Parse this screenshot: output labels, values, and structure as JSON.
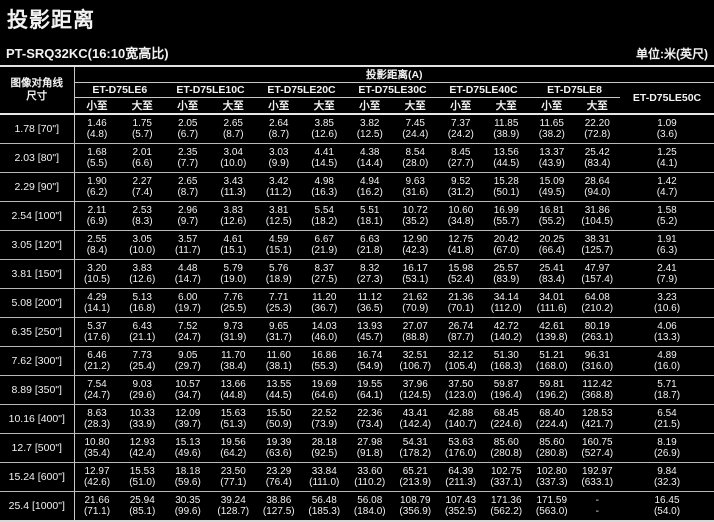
{
  "colors": {
    "background": "#000000",
    "text": "#ffffff",
    "rule": "#c8c8c8"
  },
  "header": {
    "title": "投影距离",
    "model": "PT-SRQ32KC(16:10宽高比)",
    "unit": "单位:米(英尺)"
  },
  "table": {
    "projection_header": "投影距离(A)",
    "row_header_line1": "图像对角线",
    "row_header_line2": "尺寸",
    "min_label": "小至",
    "max_label": "大至",
    "lenses": [
      "ET-D75LE6",
      "ET-D75LE10C",
      "ET-D75LE20C",
      "ET-D75LE30C",
      "ET-D75LE40C",
      "ET-D75LE8",
      "ET-D75LE50C"
    ],
    "rows": [
      {
        "size": "1.78 [70\"]",
        "cells": [
          [
            "1.46",
            "(4.8)"
          ],
          [
            "1.75",
            "(5.7)"
          ],
          [
            "2.05",
            "(6.7)"
          ],
          [
            "2.65",
            "(8.7)"
          ],
          [
            "2.64",
            "(8.7)"
          ],
          [
            "3.85",
            "(12.6)"
          ],
          [
            "3.82",
            "(12.5)"
          ],
          [
            "7.45",
            "(24.4)"
          ],
          [
            "7.37",
            "(24.2)"
          ],
          [
            "11.85",
            "(38.9)"
          ],
          [
            "11.65",
            "(38.2)"
          ],
          [
            "22.20",
            "(72.8)"
          ],
          [
            "1.09",
            "(3.6)"
          ]
        ]
      },
      {
        "size": "2.03 [80\"]",
        "cells": [
          [
            "1.68",
            "(5.5)"
          ],
          [
            "2.01",
            "(6.6)"
          ],
          [
            "2.35",
            "(7.7)"
          ],
          [
            "3.04",
            "(10.0)"
          ],
          [
            "3.03",
            "(9.9)"
          ],
          [
            "4.41",
            "(14.5)"
          ],
          [
            "4.38",
            "(14.4)"
          ],
          [
            "8.54",
            "(28.0)"
          ],
          [
            "8.45",
            "(27.7)"
          ],
          [
            "13.56",
            "(44.5)"
          ],
          [
            "13.37",
            "(43.9)"
          ],
          [
            "25.42",
            "(83.4)"
          ],
          [
            "1.25",
            "(4.1)"
          ]
        ]
      },
      {
        "size": "2.29 [90\"]",
        "cells": [
          [
            "1.90",
            "(6.2)"
          ],
          [
            "2.27",
            "(7.4)"
          ],
          [
            "2.65",
            "(8.7)"
          ],
          [
            "3.43",
            "(11.3)"
          ],
          [
            "3.42",
            "(11.2)"
          ],
          [
            "4.98",
            "(16.3)"
          ],
          [
            "4.94",
            "(16.2)"
          ],
          [
            "9.63",
            "(31.6)"
          ],
          [
            "9.52",
            "(31.2)"
          ],
          [
            "15.28",
            "(50.1)"
          ],
          [
            "15.09",
            "(49.5)"
          ],
          [
            "28.64",
            "(94.0)"
          ],
          [
            "1.42",
            "(4.7)"
          ]
        ]
      },
      {
        "size": "2.54 [100\"]",
        "cells": [
          [
            "2.11",
            "(6.9)"
          ],
          [
            "2.53",
            "(8.3)"
          ],
          [
            "2.96",
            "(9.7)"
          ],
          [
            "3.83",
            "(12.6)"
          ],
          [
            "3.81",
            "(12.5)"
          ],
          [
            "5.54",
            "(18.2)"
          ],
          [
            "5.51",
            "(18.1)"
          ],
          [
            "10.72",
            "(35.2)"
          ],
          [
            "10.60",
            "(34.8)"
          ],
          [
            "16.99",
            "(55.7)"
          ],
          [
            "16.81",
            "(55.2)"
          ],
          [
            "31.86",
            "(104.5)"
          ],
          [
            "1.58",
            "(5.2)"
          ]
        ]
      },
      {
        "size": "3.05 [120\"]",
        "cells": [
          [
            "2.55",
            "(8.4)"
          ],
          [
            "3.05",
            "(10.0)"
          ],
          [
            "3.57",
            "(11.7)"
          ],
          [
            "4.61",
            "(15.1)"
          ],
          [
            "4.59",
            "(15.1)"
          ],
          [
            "6.67",
            "(21.9)"
          ],
          [
            "6.63",
            "(21.8)"
          ],
          [
            "12.90",
            "(42.3)"
          ],
          [
            "12.75",
            "(41.8)"
          ],
          [
            "20.42",
            "(67.0)"
          ],
          [
            "20.25",
            "(66.4)"
          ],
          [
            "38.31",
            "(125.7)"
          ],
          [
            "1.91",
            "(6.3)"
          ]
        ]
      },
      {
        "size": "3.81 [150\"]",
        "cells": [
          [
            "3.20",
            "(10.5)"
          ],
          [
            "3.83",
            "(12.6)"
          ],
          [
            "4.48",
            "(14.7)"
          ],
          [
            "5.79",
            "(19.0)"
          ],
          [
            "5.76",
            "(18.9)"
          ],
          [
            "8.37",
            "(27.5)"
          ],
          [
            "8.32",
            "(27.3)"
          ],
          [
            "16.17",
            "(53.1)"
          ],
          [
            "15.98",
            "(52.4)"
          ],
          [
            "25.57",
            "(83.9)"
          ],
          [
            "25.41",
            "(83.4)"
          ],
          [
            "47.97",
            "(157.4)"
          ],
          [
            "2.41",
            "(7.9)"
          ]
        ]
      },
      {
        "size": "5.08 [200\"]",
        "cells": [
          [
            "4.29",
            "(14.1)"
          ],
          [
            "5.13",
            "(16.8)"
          ],
          [
            "6.00",
            "(19.7)"
          ],
          [
            "7.76",
            "(25.5)"
          ],
          [
            "7.71",
            "(25.3)"
          ],
          [
            "11.20",
            "(36.7)"
          ],
          [
            "11.12",
            "(36.5)"
          ],
          [
            "21.62",
            "(70.9)"
          ],
          [
            "21.36",
            "(70.1)"
          ],
          [
            "34.14",
            "(112.0)"
          ],
          [
            "34.01",
            "(111.6)"
          ],
          [
            "64.08",
            "(210.2)"
          ],
          [
            "3.23",
            "(10.6)"
          ]
        ]
      },
      {
        "size": "6.35 [250\"]",
        "cells": [
          [
            "5.37",
            "(17.6)"
          ],
          [
            "6.43",
            "(21.1)"
          ],
          [
            "7.52",
            "(24.7)"
          ],
          [
            "9.73",
            "(31.9)"
          ],
          [
            "9.65",
            "(31.7)"
          ],
          [
            "14.03",
            "(46.0)"
          ],
          [
            "13.93",
            "(45.7)"
          ],
          [
            "27.07",
            "(88.8)"
          ],
          [
            "26.74",
            "(87.7)"
          ],
          [
            "42.72",
            "(140.2)"
          ],
          [
            "42.61",
            "(139.8)"
          ],
          [
            "80.19",
            "(263.1)"
          ],
          [
            "4.06",
            "(13.3)"
          ]
        ]
      },
      {
        "size": "7.62 [300\"]",
        "cells": [
          [
            "6.46",
            "(21.2)"
          ],
          [
            "7.73",
            "(25.4)"
          ],
          [
            "9.05",
            "(29.7)"
          ],
          [
            "11.70",
            "(38.4)"
          ],
          [
            "11.60",
            "(38.1)"
          ],
          [
            "16.86",
            "(55.3)"
          ],
          [
            "16.74",
            "(54.9)"
          ],
          [
            "32.51",
            "(106.7)"
          ],
          [
            "32.12",
            "(105.4)"
          ],
          [
            "51.30",
            "(168.3)"
          ],
          [
            "51.21",
            "(168.0)"
          ],
          [
            "96.31",
            "(316.0)"
          ],
          [
            "4.89",
            "(16.0)"
          ]
        ]
      },
      {
        "size": "8.89 [350\"]",
        "cells": [
          [
            "7.54",
            "(24.7)"
          ],
          [
            "9.03",
            "(29.6)"
          ],
          [
            "10.57",
            "(34.7)"
          ],
          [
            "13.66",
            "(44.8)"
          ],
          [
            "13.55",
            "(44.5)"
          ],
          [
            "19.69",
            "(64.6)"
          ],
          [
            "19.55",
            "(64.1)"
          ],
          [
            "37.96",
            "(124.5)"
          ],
          [
            "37.50",
            "(123.0)"
          ],
          [
            "59.87",
            "(196.4)"
          ],
          [
            "59.81",
            "(196.2)"
          ],
          [
            "112.42",
            "(368.8)"
          ],
          [
            "5.71",
            "(18.7)"
          ]
        ]
      },
      {
        "size": "10.16 [400\"]",
        "cells": [
          [
            "8.63",
            "(28.3)"
          ],
          [
            "10.33",
            "(33.9)"
          ],
          [
            "12.09",
            "(39.7)"
          ],
          [
            "15.63",
            "(51.3)"
          ],
          [
            "15.50",
            "(50.9)"
          ],
          [
            "22.52",
            "(73.9)"
          ],
          [
            "22.36",
            "(73.4)"
          ],
          [
            "43.41",
            "(142.4)"
          ],
          [
            "42.88",
            "(140.7)"
          ],
          [
            "68.45",
            "(224.6)"
          ],
          [
            "68.40",
            "(224.4)"
          ],
          [
            "128.53",
            "(421.7)"
          ],
          [
            "6.54",
            "(21.5)"
          ]
        ]
      },
      {
        "size": "12.7 [500\"]",
        "cells": [
          [
            "10.80",
            "(35.4)"
          ],
          [
            "12.93",
            "(42.4)"
          ],
          [
            "15.13",
            "(49.6)"
          ],
          [
            "19.56",
            "(64.2)"
          ],
          [
            "19.39",
            "(63.6)"
          ],
          [
            "28.18",
            "(92.5)"
          ],
          [
            "27.98",
            "(91.8)"
          ],
          [
            "54.31",
            "(178.2)"
          ],
          [
            "53.63",
            "(176.0)"
          ],
          [
            "85.60",
            "(280.8)"
          ],
          [
            "85.60",
            "(280.8)"
          ],
          [
            "160.75",
            "(527.4)"
          ],
          [
            "8.19",
            "(26.9)"
          ]
        ]
      },
      {
        "size": "15.24 [600\"]",
        "cells": [
          [
            "12.97",
            "(42.6)"
          ],
          [
            "15.53",
            "(51.0)"
          ],
          [
            "18.18",
            "(59.6)"
          ],
          [
            "23.50",
            "(77.1)"
          ],
          [
            "23.29",
            "(76.4)"
          ],
          [
            "33.84",
            "(111.0)"
          ],
          [
            "33.60",
            "(110.2)"
          ],
          [
            "65.21",
            "(213.9)"
          ],
          [
            "64.39",
            "(211.3)"
          ],
          [
            "102.75",
            "(337.1)"
          ],
          [
            "102.80",
            "(337.3)"
          ],
          [
            "192.97",
            "(633.1)"
          ],
          [
            "9.84",
            "(32.3)"
          ]
        ]
      },
      {
        "size": "25.4 [1000\"]",
        "cells": [
          [
            "21.66",
            "(71.1)"
          ],
          [
            "25.94",
            "(85.1)"
          ],
          [
            "30.35",
            "(99.6)"
          ],
          [
            "39.24",
            "(128.7)"
          ],
          [
            "38.86",
            "(127.5)"
          ],
          [
            "56.48",
            "(185.3)"
          ],
          [
            "56.08",
            "(184.0)"
          ],
          [
            "108.79",
            "(356.9)"
          ],
          [
            "107.43",
            "(352.5)"
          ],
          [
            "171.36",
            "(562.2)"
          ],
          [
            "171.59",
            "(563.0)"
          ],
          [
            "-",
            "-"
          ],
          [
            "16.45",
            "(54.0)"
          ]
        ]
      }
    ]
  }
}
